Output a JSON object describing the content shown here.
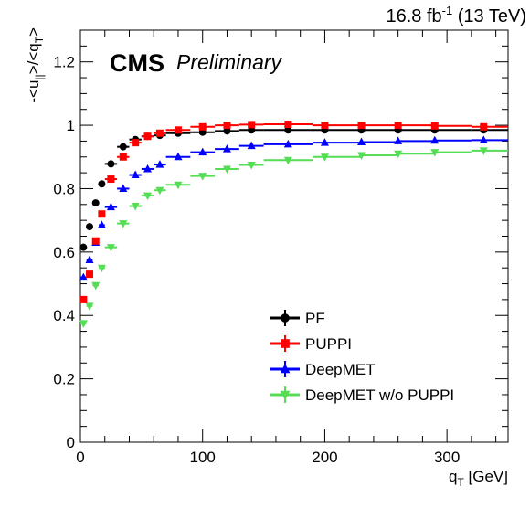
{
  "chart_data": {
    "type": "scatter",
    "lumi_label": "16.8 fb",
    "lumi_exponent": "-1",
    "energy_label": "(13 TeV)",
    "experiment": "CMS",
    "status": "Preliminary",
    "xlabel": {
      "main": "q",
      "sub": "T",
      "unit": " [GeV]"
    },
    "ylabel": {
      "text": "-<u",
      "sub1": "||",
      "mid": ">/<q",
      "sub2": "T",
      "end": ">"
    },
    "xlim": [
      0,
      350
    ],
    "ylim": [
      0,
      1.3
    ],
    "x_ticks": [
      0,
      100,
      200,
      300
    ],
    "y_ticks": [
      0,
      0.2,
      0.4,
      0.6,
      0.8,
      1,
      1.2
    ],
    "x_tick_labels": [
      "0",
      "100",
      "200",
      "300"
    ],
    "y_tick_labels": [
      "0",
      "0.2",
      "0.4",
      "0.6",
      "0.8",
      "1",
      "1.2"
    ],
    "legend_position": "lower-right",
    "x": [
      2.5,
      7.5,
      12.5,
      17.5,
      25,
      35,
      45,
      55,
      65,
      80,
      100,
      120,
      140,
      170,
      200,
      230,
      260,
      290,
      330
    ],
    "x_bins": [
      [
        0,
        5
      ],
      [
        5,
        10
      ],
      [
        10,
        15
      ],
      [
        15,
        20
      ],
      [
        20,
        30
      ],
      [
        30,
        40
      ],
      [
        40,
        50
      ],
      [
        50,
        60
      ],
      [
        60,
        70
      ],
      [
        70,
        90
      ],
      [
        90,
        110
      ],
      [
        110,
        130
      ],
      [
        130,
        150
      ],
      [
        150,
        190
      ],
      [
        190,
        230
      ],
      [
        230,
        260
      ],
      [
        260,
        290
      ],
      [
        290,
        320
      ],
      [
        320,
        350
      ]
    ],
    "series": [
      {
        "name": "PF",
        "color": "#000000",
        "marker": "circle",
        "values": [
          0.615,
          0.68,
          0.755,
          0.815,
          0.878,
          0.932,
          0.955,
          0.965,
          0.968,
          0.975,
          0.978,
          0.982,
          0.985,
          0.985,
          0.985,
          0.985,
          0.985,
          0.985,
          0.985
        ]
      },
      {
        "name": "PUPPI",
        "color": "#ff0000",
        "marker": "square",
        "values": [
          0.45,
          0.53,
          0.635,
          0.72,
          0.83,
          0.9,
          0.945,
          0.965,
          0.975,
          0.985,
          0.995,
          1.0,
          1.002,
          1.003,
          1.0,
          1.0,
          1.0,
          0.998,
          0.995
        ]
      },
      {
        "name": "DeepMET",
        "color": "#0000ff",
        "marker": "triangle-up",
        "values": [
          0.52,
          0.575,
          0.63,
          0.685,
          0.742,
          0.8,
          0.843,
          0.862,
          0.876,
          0.9,
          0.915,
          0.925,
          0.935,
          0.94,
          0.945,
          0.947,
          0.95,
          0.952,
          0.953
        ]
      },
      {
        "name": "DeepMET w/o PUPPI",
        "color": "#55dd55",
        "marker": "triangle-down",
        "values": [
          0.375,
          0.43,
          0.495,
          0.55,
          0.615,
          0.69,
          0.745,
          0.778,
          0.795,
          0.812,
          0.84,
          0.862,
          0.875,
          0.89,
          0.9,
          0.905,
          0.91,
          0.915,
          0.92
        ]
      }
    ]
  }
}
